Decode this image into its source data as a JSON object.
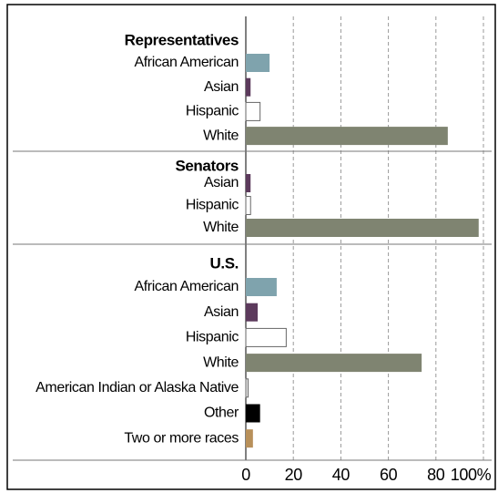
{
  "chart_data": {
    "type": "bar",
    "groups": [
      {
        "title": "Representatives",
        "categories": [
          "African American",
          "Asian",
          "Hispanic",
          "White"
        ],
        "values": [
          10,
          2,
          6,
          85
        ],
        "colors": [
          "#7fa3ad",
          "#5c3a5c",
          "#ffffff",
          "#7f8471"
        ]
      },
      {
        "title": "Senators",
        "categories": [
          "Asian",
          "Hispanic",
          "White"
        ],
        "values": [
          2,
          2,
          98
        ],
        "colors": [
          "#5c3a5c",
          "#ffffff",
          "#7f8471"
        ]
      },
      {
        "title": "U.S.",
        "categories": [
          "African American",
          "Asian",
          "Hispanic",
          "White",
          "American Indian or Alaska Native",
          "Other",
          "Two or more races"
        ],
        "values": [
          13,
          5,
          17,
          74,
          1,
          6,
          3
        ],
        "colors": [
          "#7fa3ad",
          "#5c3a5c",
          "#ffffff",
          "#7f8471",
          "#e8e8e8",
          "#000000",
          "#b8905a"
        ]
      }
    ],
    "xlim": [
      0,
      100
    ],
    "xticks": [
      0,
      20,
      40,
      60,
      80,
      {
        "value": 100,
        "label": "100%"
      }
    ],
    "grid": true
  }
}
